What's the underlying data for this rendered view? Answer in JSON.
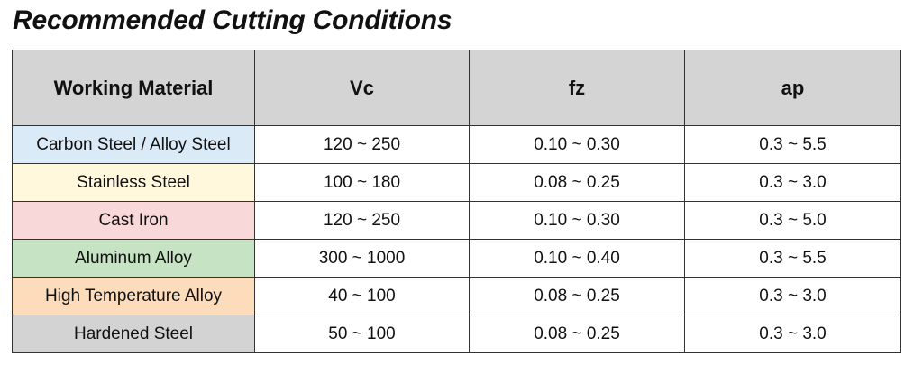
{
  "title": "Recommended Cutting Conditions",
  "table": {
    "header": [
      "Working Material",
      "Vc",
      "fz",
      "ap"
    ],
    "rows": [
      [
        "Carbon Steel / Alloy Steel",
        "120 ~ 250",
        "0.10 ~ 0.30",
        "0.3 ~ 5.5"
      ],
      [
        "Stainless Steel",
        "100 ~ 180",
        "0.08 ~ 0.25",
        "0.3 ~ 3.0"
      ],
      [
        "Cast Iron",
        "120 ~ 250",
        "0.10 ~ 0.30",
        "0.3 ~ 5.0"
      ],
      [
        "Aluminum Alloy",
        "300 ~ 1000",
        "0.10 ~ 0.40",
        "0.3 ~ 5.5"
      ],
      [
        "High Temperature Alloy",
        "40 ~ 100",
        "0.08 ~ 0.25",
        "0.3 ~ 3.0"
      ],
      [
        "Hardened Steel",
        "50 ~ 100",
        "0.08 ~ 0.25",
        "0.3 ~ 3.0"
      ]
    ]
  }
}
